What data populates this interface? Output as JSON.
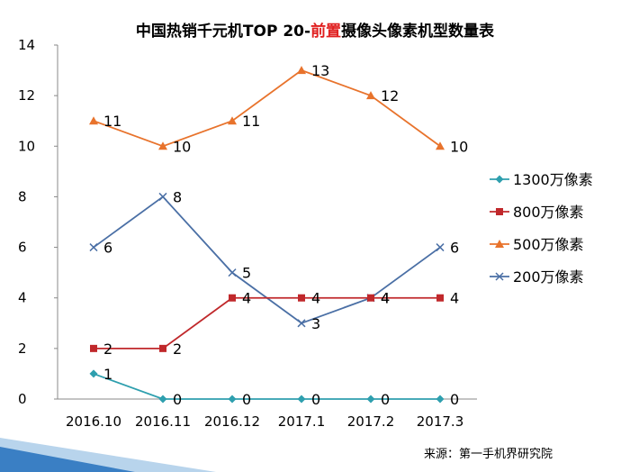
{
  "chart_data": {
    "type": "line",
    "title_parts": [
      "中国热销千元机TOP  20-",
      "前置",
      "摄像头像素机型数量表"
    ],
    "categories": [
      "2016.10",
      "2016.11",
      "2016.12",
      "2017.1",
      "2017.2",
      "2017.3"
    ],
    "ylim": [
      0,
      14
    ],
    "yticks": [
      0,
      2,
      4,
      6,
      8,
      10,
      12,
      14
    ],
    "grid": false,
    "legend_position": "right",
    "series": [
      {
        "name": "1300万像素",
        "color": "#2e9fae",
        "marker": "diamond",
        "values": [
          1,
          0,
          0,
          0,
          0,
          0
        ]
      },
      {
        "name": "800万像素",
        "color": "#c0282b",
        "marker": "square",
        "values": [
          2,
          2,
          4,
          4,
          4,
          4
        ]
      },
      {
        "name": "500万像素",
        "color": "#e8732c",
        "marker": "triangle",
        "values": [
          11,
          10,
          11,
          13,
          12,
          10
        ]
      },
      {
        "name": "200万像素",
        "color": "#4a6fa5",
        "marker": "x",
        "values": [
          6,
          8,
          5,
          3,
          4,
          6
        ]
      }
    ]
  },
  "source": "来源：第一手机界研究院",
  "decor_colors": {
    "blue": "#3a7fc4",
    "light": "#b8d4ec"
  }
}
